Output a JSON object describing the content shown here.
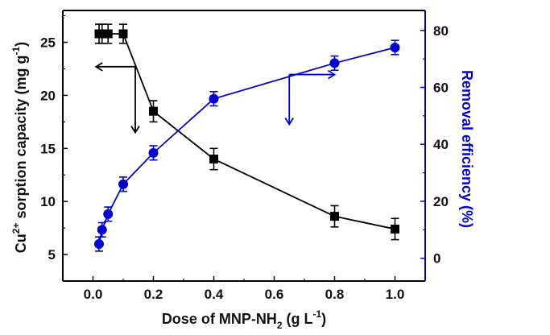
{
  "chart_data": {
    "type": "line",
    "title": "",
    "xlabel": {
      "prefix": "Dose of MNP-NH",
      "sub": "2",
      "middle": " (g L",
      "sup": "-1",
      "suffix": ")"
    },
    "ylabel_left": {
      "prefix": "Cu",
      "sup": "2+",
      "middle": " sorption capacity (mg g",
      "sup2": "-1",
      "suffix": ")"
    },
    "ylabel_right": "Removal efficiency (%)",
    "xlim": [
      -0.1,
      1.1
    ],
    "ylim_left": [
      2.5,
      28
    ],
    "ylim_right": [
      -8,
      87
    ],
    "xticks": [
      0.0,
      0.2,
      0.4,
      0.6,
      0.8,
      1.0
    ],
    "xtick_labels": [
      "0.0",
      "0.2",
      "0.4",
      "0.6",
      "0.8",
      "1.0"
    ],
    "yticks_left": [
      5,
      10,
      15,
      20,
      25
    ],
    "ytick_labels_left": [
      "5",
      "10",
      "15",
      "20",
      "25"
    ],
    "yticks_right": [
      0,
      20,
      40,
      60,
      80
    ],
    "ytick_labels_right": [
      "0",
      "20",
      "40",
      "60",
      "80"
    ],
    "grid": false,
    "series": [
      {
        "name": "Cu2+ sorption capacity",
        "axis": "left",
        "marker": "square",
        "color": "#000000",
        "x": [
          0.02,
          0.03,
          0.05,
          0.1,
          0.2,
          0.4,
          0.8,
          1.0
        ],
        "y": [
          25.8,
          25.8,
          25.8,
          25.8,
          18.5,
          14.0,
          8.6,
          7.4
        ],
        "error": [
          0.9,
          0.9,
          0.9,
          0.9,
          1.0,
          1.0,
          1.0,
          1.0
        ]
      },
      {
        "name": "Removal efficiency",
        "axis": "right",
        "marker": "circle",
        "color": "#0000cc",
        "x": [
          0.02,
          0.03,
          0.05,
          0.1,
          0.2,
          0.4,
          0.8,
          1.0
        ],
        "y": [
          5,
          10,
          15.5,
          26,
          37,
          56,
          68.5,
          74
        ],
        "error": [
          2.5,
          2.5,
          2.5,
          2.5,
          2.5,
          2.5,
          2.5,
          2.5
        ]
      }
    ],
    "annotations": [
      {
        "type": "arrow-pair",
        "color": "#000000",
        "points_to": "left axis",
        "anchor": [
          0.14,
          22.7
        ]
      },
      {
        "type": "arrow-pair",
        "color": "#0000cc",
        "points_to": "right axis",
        "anchor": [
          0.65,
          64.5
        ]
      }
    ],
    "colors": {
      "left_axis": "#000000",
      "right_axis": "#0000cc"
    }
  }
}
